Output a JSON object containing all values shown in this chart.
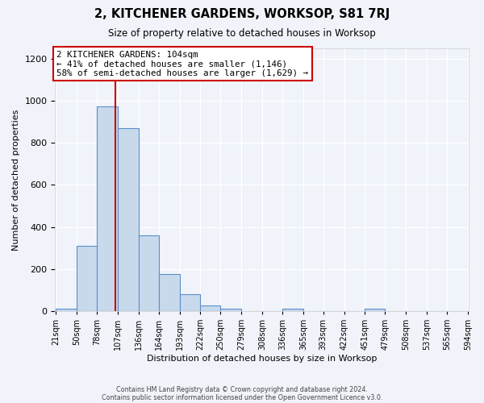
{
  "title": "2, KITCHENER GARDENS, WORKSOP, S81 7RJ",
  "subtitle": "Size of property relative to detached houses in Worksop",
  "xlabel": "Distribution of detached houses by size in Worksop",
  "ylabel": "Number of detached properties",
  "bar_color": "#c9d9ec",
  "bar_edge_color": "#5b8fc9",
  "bin_edges": [
    21,
    50,
    78,
    107,
    136,
    164,
    193,
    222,
    250,
    279,
    308,
    336,
    365,
    393,
    422,
    451,
    479,
    508,
    537,
    565,
    594
  ],
  "bar_heights": [
    10,
    310,
    975,
    870,
    360,
    175,
    80,
    25,
    10,
    0,
    0,
    10,
    0,
    0,
    0,
    10,
    0,
    0,
    0,
    0
  ],
  "red_line_x": 104,
  "annotation_title": "2 KITCHENER GARDENS: 104sqm",
  "annotation_line1": "← 41% of detached houses are smaller (1,146)",
  "annotation_line2": "58% of semi-detached houses are larger (1,629) →",
  "annotation_box_color": "#ffffff",
  "annotation_border_color": "#cc0000",
  "red_line_color": "#cc0000",
  "background_color": "#f0f4fa",
  "grid_color": "#ffffff",
  "ylim": [
    0,
    1250
  ],
  "yticks": [
    0,
    200,
    400,
    600,
    800,
    1000,
    1200
  ],
  "footer1": "Contains HM Land Registry data © Crown copyright and database right 2024.",
  "footer2": "Contains public sector information licensed under the Open Government Licence v3.0."
}
